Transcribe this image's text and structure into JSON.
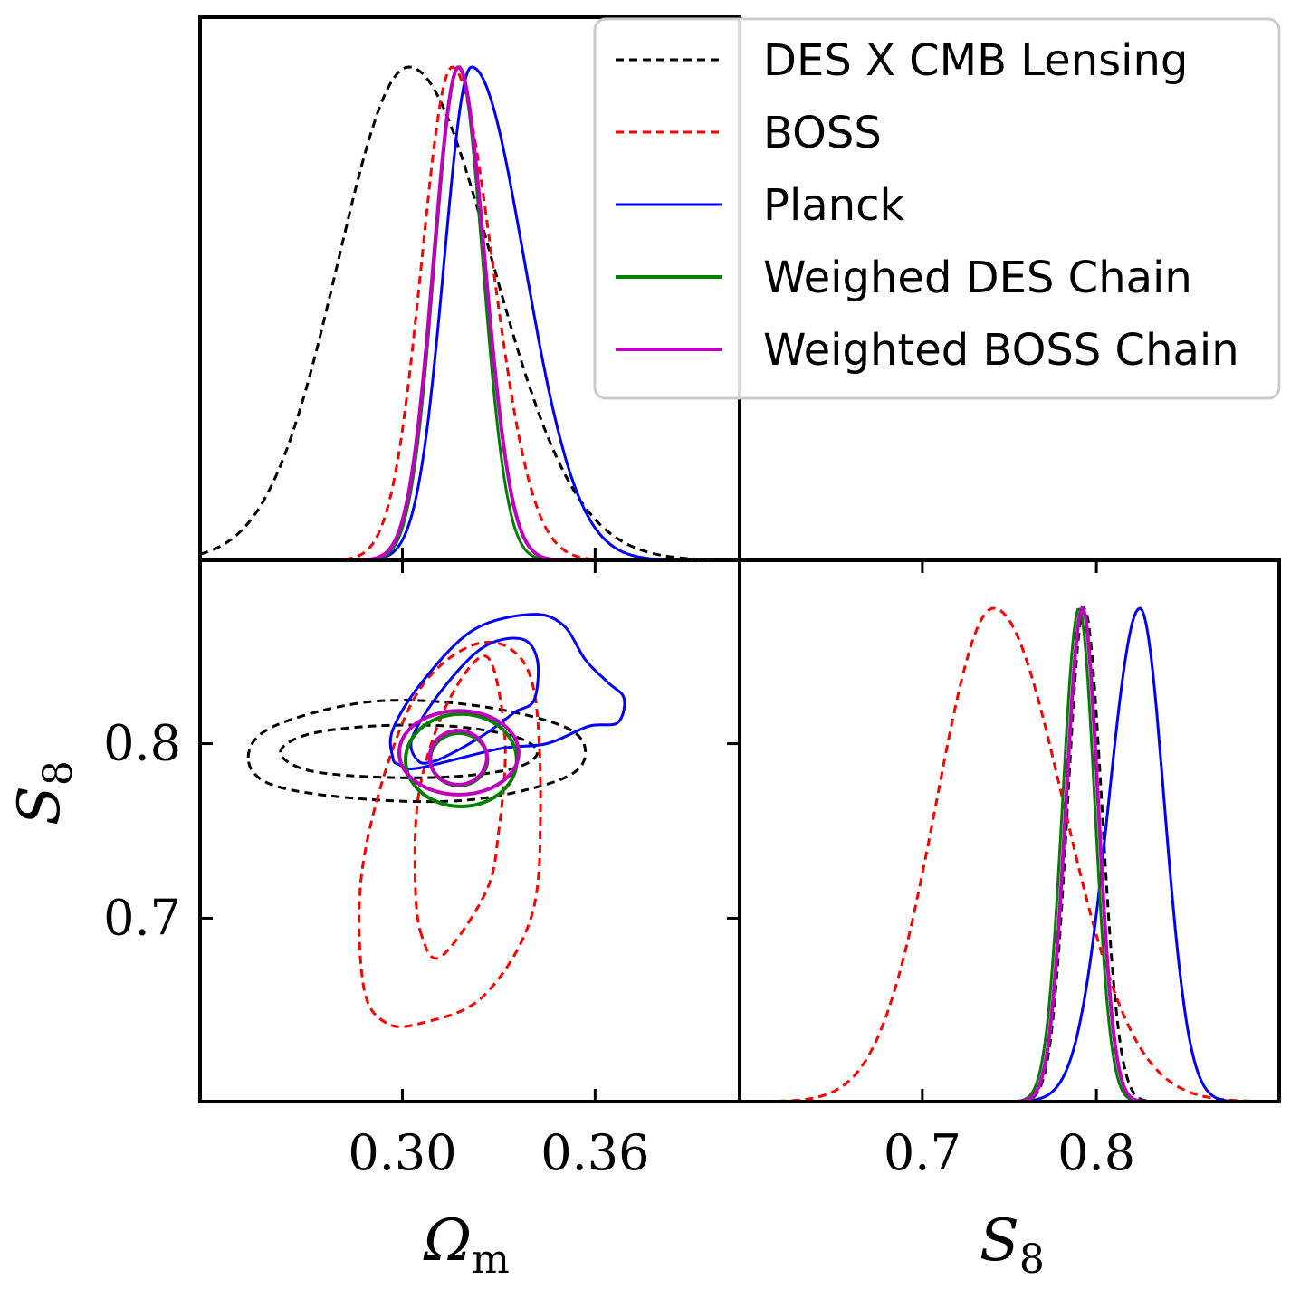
{
  "chart_data": {
    "type": "corner",
    "legend": {
      "placement": "top-right",
      "entries": [
        {
          "name": "DES X CMB Lensing",
          "color": "#000000",
          "dash": "dashed"
        },
        {
          "name": "BOSS",
          "color": "#ff0000",
          "dash": "dashed"
        },
        {
          "name": "Planck",
          "color": "#0000ff",
          "dash": "solid"
        },
        {
          "name": "Weighed DES Chain",
          "color": "#008000",
          "dash": "solid"
        },
        {
          "name": "Weighted BOSS Chain",
          "color": "#c000c0",
          "dash": "solid"
        }
      ]
    },
    "axes": {
      "omega_m": {
        "label_main": "Ω",
        "label_sub": "m",
        "range": [
          0.237,
          0.405
        ],
        "ticks": [
          0.3,
          0.36
        ],
        "tick_labels": [
          "0.30",
          "0.36"
        ]
      },
      "s8": {
        "label_main": "S",
        "label_sub": "8",
        "range": [
          0.595,
          0.905
        ],
        "ticks": [
          0.7,
          0.8
        ],
        "tick_labels": [
          "0.7",
          "0.8"
        ]
      }
    },
    "marginals_omega_m": [
      {
        "series": "DES X CMB Lensing",
        "mean": 0.302,
        "sigma_left": 0.022,
        "sigma_right": 0.026
      },
      {
        "series": "BOSS",
        "mean": 0.3155,
        "sigma_left": 0.0095,
        "sigma_right": 0.0125
      },
      {
        "series": "Planck",
        "mean": 0.3215,
        "sigma_left": 0.0085,
        "sigma_right": 0.0165
      },
      {
        "series": "Weighed DES Chain",
        "mean": 0.3175,
        "sigma_left": 0.0075,
        "sigma_right": 0.0075
      },
      {
        "series": "Weighted BOSS Chain",
        "mean": 0.3175,
        "sigma_left": 0.0078,
        "sigma_right": 0.0082
      }
    ],
    "marginals_s8": [
      {
        "series": "DES X CMB Lensing",
        "mean": 0.793,
        "sigma_left": 0.0095,
        "sigma_right": 0.01
      },
      {
        "series": "BOSS",
        "mean": 0.741,
        "sigma_left": 0.033,
        "sigma_right": 0.04
      },
      {
        "series": "Planck",
        "mean": 0.825,
        "sigma_left": 0.018,
        "sigma_right": 0.014
      },
      {
        "series": "Weighed DES Chain",
        "mean": 0.79,
        "sigma_left": 0.0095,
        "sigma_right": 0.009
      },
      {
        "series": "Weighted BOSS Chain",
        "mean": 0.792,
        "sigma_left": 0.0095,
        "sigma_right": 0.009
      }
    ],
    "contours_2d": [
      {
        "series": "DES X CMB Lensing",
        "level": "68%",
        "points": [
          [
            0.262,
            0.795
          ],
          [
            0.27,
            0.805
          ],
          [
            0.29,
            0.81
          ],
          [
            0.315,
            0.81
          ],
          [
            0.335,
            0.804
          ],
          [
            0.342,
            0.795
          ],
          [
            0.335,
            0.786
          ],
          [
            0.315,
            0.781
          ],
          [
            0.29,
            0.781
          ],
          [
            0.27,
            0.785
          ]
        ]
      },
      {
        "series": "DES X CMB Lensing",
        "level": "95%",
        "points": [
          [
            0.252,
            0.792
          ],
          [
            0.26,
            0.81
          ],
          [
            0.29,
            0.824
          ],
          [
            0.322,
            0.822
          ],
          [
            0.35,
            0.81
          ],
          [
            0.357,
            0.795
          ],
          [
            0.35,
            0.78
          ],
          [
            0.322,
            0.768
          ],
          [
            0.29,
            0.768
          ],
          [
            0.26,
            0.776
          ]
        ]
      },
      {
        "series": "BOSS",
        "level": "68%",
        "points": [
          [
            0.306,
            0.69
          ],
          [
            0.304,
            0.72
          ],
          [
            0.305,
            0.77
          ],
          [
            0.312,
            0.815
          ],
          [
            0.322,
            0.846
          ],
          [
            0.328,
            0.845
          ],
          [
            0.332,
            0.8
          ],
          [
            0.33,
            0.75
          ],
          [
            0.326,
            0.715
          ],
          [
            0.312,
            0.678
          ]
        ]
      },
      {
        "series": "BOSS",
        "level": "95%",
        "points": [
          [
            0.295,
            0.64
          ],
          [
            0.288,
            0.66
          ],
          [
            0.287,
            0.72
          ],
          [
            0.294,
            0.78
          ],
          [
            0.305,
            0.83
          ],
          [
            0.32,
            0.855
          ],
          [
            0.333,
            0.855
          ],
          [
            0.341,
            0.83
          ],
          [
            0.343,
            0.76
          ],
          [
            0.34,
            0.7
          ],
          [
            0.325,
            0.655
          ],
          [
            0.306,
            0.64
          ]
        ]
      },
      {
        "series": "Planck",
        "level": "68%",
        "points": [
          [
            0.305,
            0.79
          ],
          [
            0.303,
            0.803
          ],
          [
            0.312,
            0.83
          ],
          [
            0.325,
            0.855
          ],
          [
            0.337,
            0.86
          ],
          [
            0.342,
            0.848
          ],
          [
            0.341,
            0.825
          ],
          [
            0.335,
            0.818
          ],
          [
            0.327,
            0.807
          ],
          [
            0.318,
            0.797
          ],
          [
            0.31,
            0.79
          ]
        ]
      },
      {
        "series": "Planck",
        "level": "95%",
        "points": [
          [
            0.297,
            0.792
          ],
          [
            0.297,
            0.808
          ],
          [
            0.306,
            0.835
          ],
          [
            0.322,
            0.865
          ],
          [
            0.34,
            0.874
          ],
          [
            0.35,
            0.868
          ],
          [
            0.357,
            0.848
          ],
          [
            0.364,
            0.835
          ],
          [
            0.369,
            0.826
          ],
          [
            0.367,
            0.812
          ],
          [
            0.358,
            0.81
          ],
          [
            0.345,
            0.8
          ],
          [
            0.33,
            0.797
          ],
          [
            0.305,
            0.786
          ],
          [
            0.299,
            0.788
          ]
        ]
      },
      {
        "series": "Weighed DES Chain",
        "level": "68%",
        "ellipse": {
          "cx": 0.3176,
          "cy": 0.791,
          "rx": 0.0089,
          "ry": 0.015
        }
      },
      {
        "series": "Weighed DES Chain",
        "level": "95%",
        "ellipse": {
          "cx": 0.3183,
          "cy": 0.7905,
          "rx": 0.0173,
          "ry": 0.0265
        }
      },
      {
        "series": "Weighted BOSS Chain",
        "level": "68%",
        "ellipse": {
          "cx": 0.3174,
          "cy": 0.792,
          "rx": 0.0089,
          "ry": 0.0155
        }
      },
      {
        "series": "Weighted BOSS Chain",
        "level": "95%",
        "ellipse": {
          "cx": 0.3176,
          "cy": 0.7948,
          "rx": 0.0186,
          "ry": 0.024
        }
      }
    ]
  }
}
